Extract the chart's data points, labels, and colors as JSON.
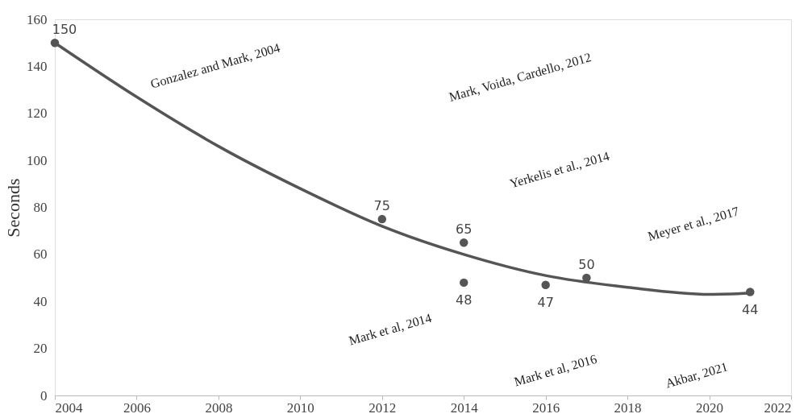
{
  "chart_data": {
    "type": "scatter",
    "ylabel": "Seconds",
    "xlim": [
      2004,
      2022
    ],
    "xticks": [
      2004,
      2006,
      2008,
      2010,
      2012,
      2014,
      2016,
      2018,
      2020,
      2022
    ],
    "ylim": [
      0,
      160
    ],
    "yticks": [
      0,
      20,
      40,
      60,
      80,
      100,
      120,
      140,
      160
    ],
    "grid": false,
    "series": [
      {
        "color": "#555555",
        "marker": "circle",
        "x": [
          2004,
          2012,
          2014,
          2014,
          2016,
          2017,
          2021
        ],
        "values": [
          150,
          75,
          65,
          48,
          47,
          50,
          44
        ],
        "value_labels": [
          "150",
          "75",
          "65",
          "48",
          "47",
          "50",
          "44"
        ]
      },
      {
        "type": "line",
        "color": "#555555",
        "marker": "none",
        "x": [
          2004,
          2006,
          2008,
          2010,
          2012,
          2014,
          2016,
          2018,
          2020,
          2021
        ],
        "values": [
          150,
          127,
          106,
          88,
          72,
          60,
          51,
          46,
          43,
          43.5
        ]
      }
    ],
    "annotations": [
      "Gonzalez and Mark, 2004",
      "Mark, Voida, Cardello, 2012",
      "Yerkelis et al., 2014",
      "Mark et al, 2014",
      "Mark et al, 2016",
      "Meyer et al., 2017",
      "Akbar, 2021"
    ]
  }
}
